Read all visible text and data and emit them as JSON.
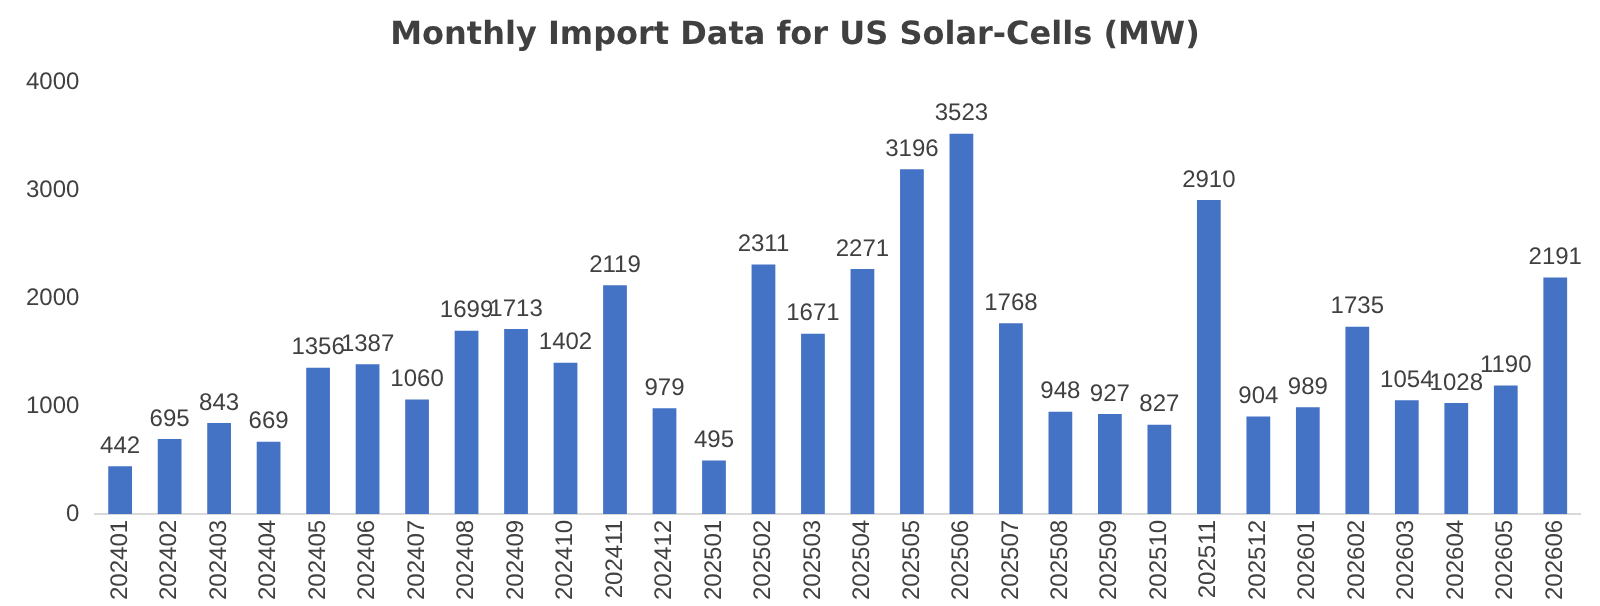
{
  "chart_data": {
    "type": "bar",
    "title": "Monthly Import Data for US Solar-Cells (MW)",
    "categories": [
      "202401",
      "202402",
      "202403",
      "202404",
      "202405",
      "202406",
      "202407",
      "202408",
      "202409",
      "202410",
      "202411",
      "202412",
      "202501",
      "202502",
      "202503",
      "202504",
      "202505",
      "202506",
      "202507",
      "202508",
      "202509",
      "202510",
      "202511",
      "202512",
      "202601",
      "202602",
      "202603",
      "202604",
      "202605",
      "202606"
    ],
    "values": [
      442,
      695,
      843,
      669,
      1356,
      1387,
      1060,
      1699,
      1713,
      1402,
      2119,
      979,
      495,
      2311,
      1671,
      2271,
      3196,
      3523,
      1768,
      948,
      927,
      827,
      2910,
      904,
      989,
      1735,
      1054,
      1028,
      1190,
      2191
    ],
    "color": "#4472c4",
    "ylim": [
      0,
      4000
    ],
    "yticks": [
      0,
      1000,
      2000,
      3000,
      4000
    ],
    "grid": false,
    "data_labels": true,
    "legend": false
  }
}
